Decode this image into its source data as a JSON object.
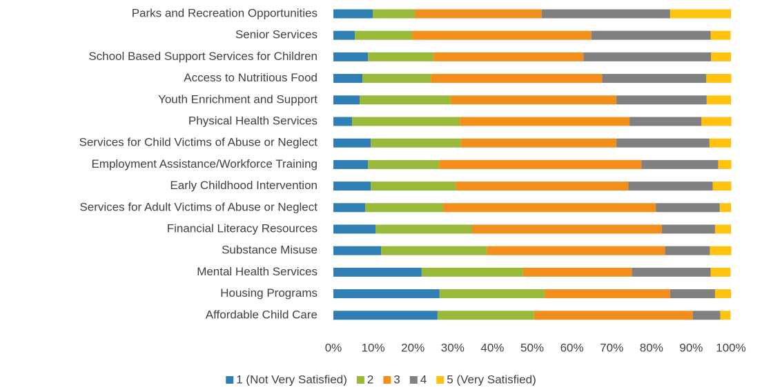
{
  "chart_data": {
    "type": "stacked_bar_horizontal",
    "categories": [
      "Parks and Recreation Opportunities",
      "Senior Services",
      "School Based Support Services for Children",
      "Access to Nutritious Food",
      "Youth Enrichment and Support",
      "Physical Health Services",
      "Services for Child Victims of Abuse or Neglect",
      "Employment Assistance/Workforce Training",
      "Early Childhood Intervention",
      "Services for Adult Victims of Abuse or Neglect",
      "Financial Literacy Resources",
      "Substance Misuse",
      "Mental Health Services",
      "Housing Programs",
      "Affordable Child Care"
    ],
    "series": [
      {
        "name": "1 (Not Very Satisfied)",
        "color": "#2f7fb5",
        "values": [
          9.9,
          5.4,
          8.7,
          7.3,
          6.6,
          4.7,
          9.4,
          8.7,
          9.4,
          8.0,
          10.6,
          12.0,
          22.2,
          26.7,
          26.2
        ]
      },
      {
        "name": "2",
        "color": "#99b93a",
        "values": [
          10.6,
          14.4,
          16.5,
          17.2,
          22.9,
          27.1,
          22.7,
          17.9,
          21.4,
          19.6,
          24.3,
          26.6,
          25.5,
          26.4,
          24.3
        ]
      },
      {
        "name": "3",
        "color": "#f28e1c",
        "values": [
          31.9,
          45.1,
          37.7,
          43.1,
          41.7,
          42.7,
          39.1,
          50.9,
          43.4,
          53.5,
          47.7,
          44.8,
          27.4,
          31.6,
          39.9
        ]
      },
      {
        "name": "4",
        "color": "#808080",
        "values": [
          32.3,
          30.0,
          32.1,
          26.2,
          22.7,
          18.1,
          23.4,
          19.3,
          21.2,
          16.1,
          13.4,
          11.3,
          19.8,
          11.3,
          6.9
        ]
      },
      {
        "name": "5 (Very Satisfied)",
        "color": "#ffc20e",
        "values": [
          15.3,
          5.0,
          5.0,
          6.3,
          6.1,
          7.5,
          5.4,
          3.3,
          4.7,
          2.8,
          4.0,
          5.4,
          5.0,
          4.0,
          2.6
        ]
      }
    ],
    "xlim": [
      0,
      100
    ],
    "xticks": [
      {
        "value": 0,
        "label": "0%"
      },
      {
        "value": 10,
        "label": "10%"
      },
      {
        "value": 20,
        "label": "20%"
      },
      {
        "value": 30,
        "label": "30%"
      },
      {
        "value": 40,
        "label": "40%"
      },
      {
        "value": 50,
        "label": "50%"
      },
      {
        "value": 60,
        "label": "60%"
      },
      {
        "value": 70,
        "label": "70%"
      },
      {
        "value": 80,
        "label": "80%"
      },
      {
        "value": 90,
        "label": "90%"
      },
      {
        "value": 100,
        "label": "100%"
      }
    ],
    "grid": false,
    "legend": "bottom"
  }
}
